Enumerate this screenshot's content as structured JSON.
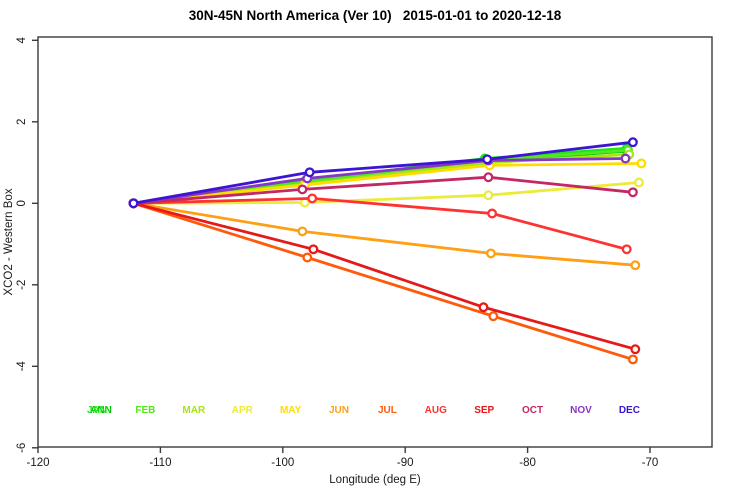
{
  "title": "30N-45N North America (Ver 10)   2015-01-01 to 2020-12-18",
  "chart_data": {
    "type": "line",
    "title": "30N-45N North America (Ver 10)   2015-01-01 to 2020-12-18",
    "xlabel": "Longitude (deg E)",
    "ylabel": "XCO2 - Western Box",
    "xlim": [
      -120,
      -64.9
    ],
    "ylim": [
      -6,
      4.1
    ],
    "x_ticks": [
      -120,
      -110,
      -100,
      -90,
      -80,
      -70
    ],
    "y_ticks": [
      4,
      2,
      0,
      -2,
      -4,
      -6
    ],
    "grid": false,
    "marker": "open-circle",
    "legend_position": "inside-bottom",
    "axis_color": "#3a3a3a",
    "series": [
      {
        "name": "ANN",
        "color": "#00c800",
        "x": [
          -112.2,
          -98.2,
          -83.4,
          -71.9
        ],
        "y": [
          0,
          0.5,
          1.02,
          1.28
        ]
      },
      {
        "name": "JAN",
        "color": "#1ee61e",
        "x": [
          -112.2,
          -98.2,
          -83.5,
          -71.9
        ],
        "y": [
          0,
          0.55,
          1.1,
          1.35
        ]
      },
      {
        "name": "FEB",
        "color": "#55e61e",
        "x": [
          -112.2,
          -98.2,
          -83.3,
          -71.8
        ],
        "y": [
          0,
          0.52,
          1.05,
          1.3
        ]
      },
      {
        "name": "MAR",
        "color": "#a5e614",
        "x": [
          -112.2,
          -98.2,
          -83.1,
          -71.7
        ],
        "y": [
          0,
          0.47,
          1.0,
          1.2
        ]
      },
      {
        "name": "APR",
        "color": "#ebeb3c",
        "x": [
          -112.2,
          -98.2,
          -83.2,
          -70.9
        ],
        "y": [
          0,
          0.02,
          0.2,
          0.51
        ]
      },
      {
        "name": "MAY",
        "color": "#ffdc00",
        "x": [
          -112.2,
          -98.2,
          -83.1,
          -70.7
        ],
        "y": [
          0,
          0.45,
          0.93,
          0.98
        ]
      },
      {
        "name": "JUN",
        "color": "#ffa014",
        "x": [
          -112.2,
          -98.4,
          -83.0,
          -71.2
        ],
        "y": [
          0,
          -0.69,
          -1.23,
          -1.52
        ]
      },
      {
        "name": "JUL",
        "color": "#ff5a0a",
        "x": [
          -112.2,
          -98.0,
          -82.8,
          -71.4
        ],
        "y": [
          0,
          -1.33,
          -2.77,
          -3.83
        ]
      },
      {
        "name": "AUG",
        "color": "#ff3232",
        "x": [
          -112.2,
          -97.6,
          -82.9,
          -71.9
        ],
        "y": [
          0,
          0.12,
          -0.25,
          -1.13
        ]
      },
      {
        "name": "SEP",
        "color": "#e61919",
        "x": [
          -112.2,
          -97.5,
          -83.6,
          -71.2
        ],
        "y": [
          0,
          -1.13,
          -2.55,
          -3.58
        ]
      },
      {
        "name": "OCT",
        "color": "#c32864",
        "x": [
          -112.2,
          -98.4,
          -83.2,
          -71.4
        ],
        "y": [
          0,
          0.34,
          0.64,
          0.27
        ]
      },
      {
        "name": "NOV",
        "color": "#8737c8",
        "x": [
          -112.2,
          -98.0,
          -83.2,
          -72.0
        ],
        "y": [
          0,
          0.61,
          1.05,
          1.1
        ]
      },
      {
        "name": "DEC",
        "color": "#3c14d2",
        "x": [
          -112.2,
          -97.8,
          -83.3,
          -71.4
        ],
        "y": [
          0,
          0.76,
          1.08,
          1.5
        ]
      }
    ],
    "legend": [
      {
        "label": "ANN",
        "color": "#00c800",
        "slot": 0,
        "dx": 4
      },
      {
        "label": "JAN",
        "color": "#1ee61e",
        "slot": 0,
        "dx": 0
      },
      {
        "label": "FEB",
        "color": "#55e61e",
        "slot": 1,
        "dx": 0
      },
      {
        "label": "MAR",
        "color": "#a5e614",
        "slot": 2,
        "dx": 0
      },
      {
        "label": "APR",
        "color": "#ebeb3c",
        "slot": 3,
        "dx": 0
      },
      {
        "label": "MAY",
        "color": "#ffdc00",
        "slot": 4,
        "dx": 0
      },
      {
        "label": "JUN",
        "color": "#ffa014",
        "slot": 5,
        "dx": 0
      },
      {
        "label": "JUL",
        "color": "#ff5a0a",
        "slot": 6,
        "dx": 0
      },
      {
        "label": "AUG",
        "color": "#ff3232",
        "slot": 7,
        "dx": 0
      },
      {
        "label": "SEP",
        "color": "#e61919",
        "slot": 8,
        "dx": 0
      },
      {
        "label": "OCT",
        "color": "#c32864",
        "slot": 9,
        "dx": 0
      },
      {
        "label": "NOV",
        "color": "#8737c8",
        "slot": 10,
        "dx": 0
      },
      {
        "label": "DEC",
        "color": "#3c14d2",
        "slot": 11,
        "dx": 0
      }
    ]
  }
}
